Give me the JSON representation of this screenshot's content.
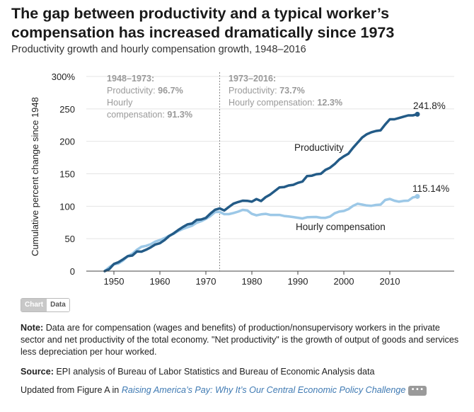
{
  "header": {
    "title": "The gap between productivity and a typical worker’s compensation has increased dramatically since 1973",
    "subtitle": "Productivity growth and hourly compensation growth, 1948–2016"
  },
  "chart_data": {
    "type": "line",
    "ylabel": "Cumulative percent change since 1948",
    "xlim": [
      1944,
      2024
    ],
    "ylim": [
      0,
      300
    ],
    "x_ticks": [
      1950,
      1960,
      1970,
      1980,
      1990,
      2000,
      2010
    ],
    "y_ticks": [
      0,
      50,
      100,
      150,
      200,
      250,
      300
    ],
    "y_tick_labels": [
      "0",
      "50",
      "100",
      "150",
      "200",
      "250",
      "300%"
    ],
    "divider_year": 1973,
    "period1": {
      "title": "1948–1973:",
      "prod_label": "Productivity:",
      "prod_value": "96.7%",
      "comp_label_1": "Hourly",
      "comp_label_2": "compensation:",
      "comp_value": "91.3%"
    },
    "period2": {
      "title": "1973–2016:",
      "prod_label": "Productivity:",
      "prod_value": "73.7%",
      "comp_label": "Hourly compensation:",
      "comp_value": "12.3%"
    },
    "x": [
      1948,
      1949,
      1950,
      1951,
      1952,
      1953,
      1954,
      1955,
      1956,
      1957,
      1958,
      1959,
      1960,
      1961,
      1962,
      1963,
      1964,
      1965,
      1966,
      1967,
      1968,
      1969,
      1970,
      1971,
      1972,
      1973,
      1974,
      1975,
      1976,
      1977,
      1978,
      1979,
      1980,
      1981,
      1982,
      1983,
      1984,
      1985,
      1986,
      1987,
      1988,
      1989,
      1990,
      1991,
      1992,
      1993,
      1994,
      1995,
      1996,
      1997,
      1998,
      1999,
      2000,
      2001,
      2002,
      2003,
      2004,
      2005,
      2006,
      2007,
      2008,
      2009,
      2010,
      2011,
      2012,
      2013,
      2014,
      2015,
      2016
    ],
    "series": [
      {
        "name": "Productivity",
        "color": "#235b87",
        "end_label": "241.8%",
        "values": [
          0,
          3.2,
          11,
          13.8,
          18.2,
          23,
          24,
          30.2,
          30,
          33,
          36.6,
          41,
          43,
          47.8,
          54,
          58.3,
          63.4,
          68,
          72,
          73.4,
          79,
          79.6,
          82,
          88.8,
          94.6,
          96.7,
          93.5,
          98.8,
          104,
          106.5,
          108.5,
          108.3,
          107,
          111.1,
          108,
          114,
          118,
          123.5,
          129,
          129.5,
          132,
          133,
          136,
          138,
          146.5,
          147,
          149.3,
          150,
          156,
          159.4,
          165,
          172,
          177,
          181,
          190,
          198,
          206,
          211,
          214,
          216,
          217,
          226,
          234,
          234,
          236,
          238,
          240,
          240,
          241.8
        ]
      },
      {
        "name": "Hourly compensation",
        "color": "#9cc8e7",
        "end_label": "115.14%",
        "values": [
          0,
          6.2,
          10.5,
          11.8,
          16.5,
          22.9,
          26.8,
          32.9,
          37.5,
          38.9,
          41.5,
          45.5,
          47.8,
          50.8,
          54.5,
          57.5,
          61.8,
          65,
          67.5,
          70,
          74.5,
          77,
          80.5,
          85,
          91,
          91.3,
          87.8,
          87.8,
          89.6,
          91.6,
          94.4,
          93.6,
          88.3,
          86,
          87.5,
          88.3,
          86.6,
          86.6,
          86.6,
          85,
          84.2,
          83.3,
          82.2,
          81.2,
          83,
          83.4,
          83.5,
          82.2,
          82.1,
          84.1,
          89.1,
          91.8,
          92.7,
          95.6,
          100.6,
          103.9,
          102.5,
          101.1,
          100.7,
          102,
          102.5,
          109.6,
          111.3,
          108.5,
          107,
          108.2,
          108.5,
          113.6,
          115.14
        ]
      }
    ]
  },
  "toggle": {
    "chart_label": "Chart",
    "data_label": "Data"
  },
  "notes": {
    "note_label": "Note:",
    "note_text": "Data are for compensation (wages and benefits) of production/nonsupervisory workers in the private sector and net productivity of the total economy. \"Net productivity\" is the growth of output of goods and services less depreciation per hour worked.",
    "source_label": "Source:",
    "source_text": "EPI analysis of Bureau of Labor Statistics and Bureau of Economic Analysis data",
    "updated_text": "Updated from Figure A in",
    "link_text": "Raising America’s Pay: Why It’s Our Central Economic Policy Challenge",
    "more_label": "• • •"
  }
}
